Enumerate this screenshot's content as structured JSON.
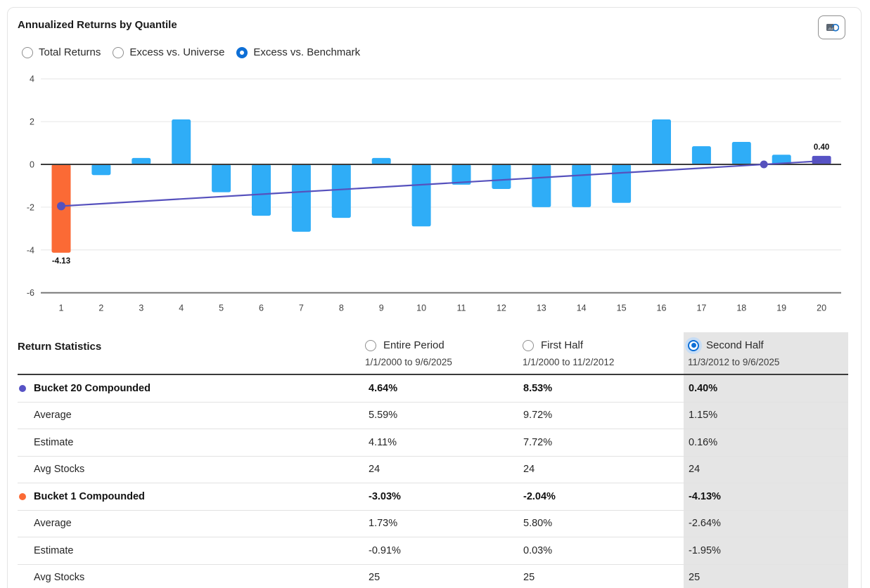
{
  "panel": {
    "title": "Annualized Returns by Quantile"
  },
  "toolbar": {
    "export_icon": "copy-chart-image-icon"
  },
  "view_options": {
    "items": [
      {
        "label": "Total Returns",
        "selected": false
      },
      {
        "label": "Excess vs. Universe",
        "selected": false
      },
      {
        "label": "Excess vs. Benchmark",
        "selected": true
      }
    ]
  },
  "colors": {
    "bar_default": "#2fadf7",
    "bar_bucket1": "#fb6a35",
    "bar_bucket20": "#5753c5",
    "trend_line": "#5651bd",
    "radio_accent": "#0e6fd6",
    "selected_column_bg": "#e5e5e5"
  },
  "chart_data": {
    "type": "bar",
    "title": "Annualized Returns by Quantile",
    "selected_view": "Excess vs. Benchmark",
    "xlabel": "",
    "ylabel": "",
    "categories": [
      "1",
      "2",
      "3",
      "4",
      "5",
      "6",
      "7",
      "8",
      "9",
      "10",
      "11",
      "12",
      "13",
      "14",
      "15",
      "16",
      "17",
      "18",
      "19",
      "20"
    ],
    "series": [
      {
        "name": "Excess vs. Benchmark (Second Half)",
        "type": "bar",
        "values": [
          -4.13,
          -0.5,
          0.3,
          2.1,
          -1.3,
          -2.4,
          -3.15,
          -2.5,
          0.3,
          -2.9,
          -0.95,
          -1.15,
          -2.0,
          -2.0,
          -1.8,
          2.1,
          0.85,
          1.05,
          0.45,
          0.4
        ]
      },
      {
        "name": "Estimate trend",
        "type": "line",
        "points": [
          {
            "x": 1,
            "y": -1.95
          },
          {
            "x": 20,
            "y": 0.16
          }
        ],
        "markers": [
          {
            "x": 1,
            "y": -1.95,
            "r": 6
          },
          {
            "x": 18.56,
            "y": 0,
            "r": 5.5
          }
        ]
      }
    ],
    "annotations": [
      {
        "category": "1",
        "text": "-4.13",
        "position": "below"
      },
      {
        "category": "20",
        "text": "0.40",
        "position": "above"
      }
    ],
    "ylim": [
      -6,
      4
    ],
    "yticks": [
      4,
      2,
      0,
      -2,
      -4,
      -6
    ],
    "grid": true,
    "legend": "none"
  },
  "statistics": {
    "title": "Return Statistics",
    "periods": [
      {
        "label": "Entire Period",
        "range": "1/1/2000 to 9/6/2025",
        "selected": false
      },
      {
        "label": "First Half",
        "range": "1/1/2000 to 11/2/2012",
        "selected": false
      },
      {
        "label": "Second Half",
        "range": "11/3/2012 to 9/6/2025",
        "selected": true
      }
    ],
    "rows": [
      {
        "label": "Bucket 20 Compounded",
        "bold": true,
        "dot_color": "#5753c5",
        "values": [
          "4.64%",
          "8.53%",
          "0.40%"
        ]
      },
      {
        "label": "Average",
        "bold": false,
        "values": [
          "5.59%",
          "9.72%",
          "1.15%"
        ]
      },
      {
        "label": "Estimate",
        "bold": false,
        "values": [
          "4.11%",
          "7.72%",
          "0.16%"
        ]
      },
      {
        "label": "Avg Stocks",
        "bold": false,
        "values": [
          "24",
          "24",
          "24"
        ]
      },
      {
        "label": "Bucket 1 Compounded",
        "bold": true,
        "dot_color": "#fb6a35",
        "values": [
          "-3.03%",
          "-2.04%",
          "-4.13%"
        ]
      },
      {
        "label": "Average",
        "bold": false,
        "values": [
          "1.73%",
          "5.80%",
          "-2.64%"
        ]
      },
      {
        "label": "Estimate",
        "bold": false,
        "values": [
          "-0.91%",
          "0.03%",
          "-1.95%"
        ]
      },
      {
        "label": "Avg Stocks",
        "bold": false,
        "values": [
          "25",
          "25",
          "25"
        ]
      }
    ]
  }
}
